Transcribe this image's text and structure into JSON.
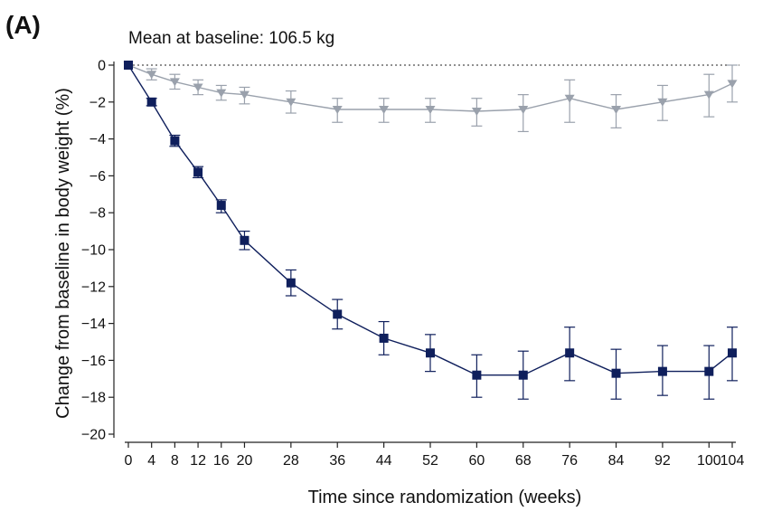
{
  "panel_label": "(A)",
  "chart_data": {
    "type": "line",
    "subtitle": "Mean at baseline: 106.5 kg",
    "xlabel": "Time since randomization (weeks)",
    "ylabel": "Change from baseline in body weight (%)",
    "x_ticks": [
      0,
      4,
      8,
      12,
      16,
      20,
      28,
      36,
      44,
      52,
      60,
      68,
      76,
      84,
      92,
      100,
      104
    ],
    "y_ticks": [
      0,
      -2,
      -4,
      -6,
      -8,
      -10,
      -12,
      -14,
      -16,
      -18,
      -20
    ],
    "xlim": [
      0,
      104
    ],
    "ylim": [
      -20,
      0
    ],
    "reference_line_y": 0,
    "grid": false,
    "legend": "none",
    "series": [
      {
        "marker": "square",
        "color": "#0f1f5c",
        "x": [
          0,
          4,
          8,
          12,
          16,
          20,
          28,
          36,
          44,
          52,
          60,
          68,
          76,
          84,
          92,
          100,
          104
        ],
        "y": [
          0,
          -2.0,
          -4.1,
          -5.8,
          -7.6,
          -9.5,
          -11.8,
          -13.5,
          -14.8,
          -15.6,
          -16.8,
          -16.8,
          -15.6,
          -16.7,
          -16.6,
          -16.6,
          -15.6
        ],
        "err_low": [
          0,
          -2.2,
          -4.4,
          -6.1,
          -8.0,
          -10.0,
          -12.5,
          -14.3,
          -15.7,
          -16.6,
          -18.0,
          -18.1,
          -17.1,
          -18.1,
          -17.9,
          -18.1,
          -17.1
        ],
        "err_high": [
          0,
          -1.8,
          -3.8,
          -5.5,
          -7.3,
          -9.0,
          -11.1,
          -12.7,
          -13.9,
          -14.6,
          -15.7,
          -15.5,
          -14.2,
          -15.4,
          -15.2,
          -15.2,
          -14.2
        ]
      },
      {
        "marker": "triangle-down",
        "color": "#9aa1ac",
        "x": [
          0,
          4,
          8,
          12,
          16,
          20,
          28,
          36,
          44,
          52,
          60,
          68,
          76,
          84,
          92,
          100,
          104
        ],
        "y": [
          0,
          -0.5,
          -0.9,
          -1.2,
          -1.5,
          -1.6,
          -2.0,
          -2.4,
          -2.4,
          -2.4,
          -2.5,
          -2.4,
          -1.8,
          -2.4,
          -2.0,
          -1.6,
          -1.0
        ],
        "err_low": [
          0,
          -0.8,
          -1.3,
          -1.6,
          -1.9,
          -2.1,
          -2.6,
          -3.1,
          -3.1,
          -3.1,
          -3.3,
          -3.6,
          -3.1,
          -3.4,
          -3.0,
          -2.8,
          -2.0
        ],
        "err_high": [
          0,
          -0.2,
          -0.5,
          -0.8,
          -1.1,
          -1.2,
          -1.4,
          -1.8,
          -1.8,
          -1.8,
          -1.8,
          -1.6,
          -0.8,
          -1.6,
          -1.1,
          -0.5,
          0.0
        ]
      }
    ]
  }
}
